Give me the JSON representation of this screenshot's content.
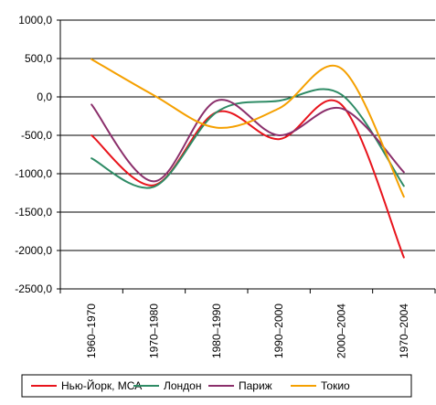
{
  "chart_data": {
    "type": "line",
    "categories": [
      "1960–1970",
      "1970–1980",
      "1980–1990",
      "1990–2000",
      "2000–2004",
      "1970–2004"
    ],
    "ylim": [
      -2500,
      1000
    ],
    "ytick_step": 500,
    "ytick_labels": [
      "1000,0",
      "500,0",
      "0,0",
      "-500,0",
      "-1000,0",
      "-1500,0",
      "-2000,0",
      "-2500,0"
    ],
    "grid": true,
    "smooth": true,
    "legend_position": "bottom",
    "series": [
      {
        "name": "Нью-Йорк, МСА",
        "color": "#e8141c",
        "values": [
          -500,
          -1150,
          -200,
          -550,
          -100,
          -2090
        ]
      },
      {
        "name": "Лондон",
        "color": "#2e8b65",
        "values": [
          -800,
          -1170,
          -200,
          -50,
          30,
          -1160
        ]
      },
      {
        "name": "Париж",
        "color": "#8b2f6b",
        "values": [
          -100,
          -1100,
          -50,
          -500,
          -150,
          -980
        ]
      },
      {
        "name": "Токио",
        "color": "#f5a000",
        "values": [
          490,
          20,
          -400,
          -150,
          370,
          -1300
        ]
      }
    ]
  }
}
